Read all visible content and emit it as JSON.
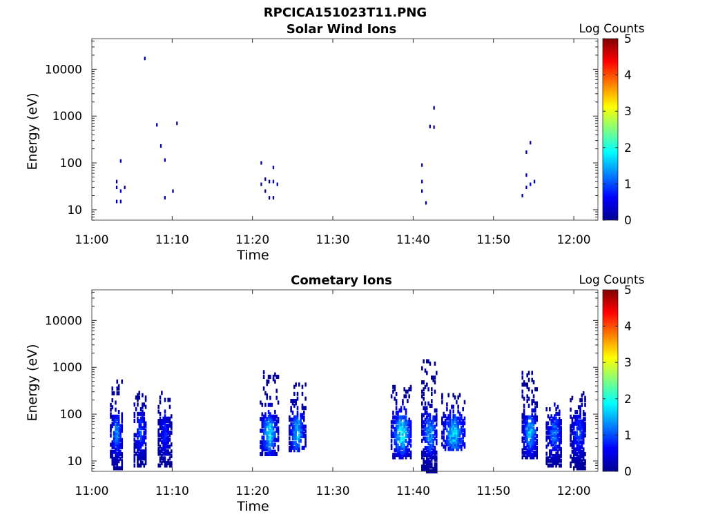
{
  "title": "RPCICA151023T11.PNG",
  "colors": {
    "colormap": [
      "#00008f",
      "#0000ff",
      "#0080ff",
      "#00ffff",
      "#80ff80",
      "#ffff00",
      "#ff8000",
      "#ff0000",
      "#800000"
    ]
  },
  "chart_data": [
    {
      "type": "heatmap",
      "title": "Solar Wind Ions",
      "xlabel": "Time",
      "ylabel": "Energy (eV)",
      "x_ticks": [
        "11:00",
        "11:10",
        "11:20",
        "11:30",
        "11:40",
        "11:50",
        "12:00"
      ],
      "xlim": [
        "11:00",
        "12:03"
      ],
      "y_scale": "log",
      "y_ticks": [
        "10",
        "100",
        "1000",
        "10000"
      ],
      "ylim": [
        6,
        45000
      ],
      "colorbar": {
        "label": "Log Counts",
        "range": [
          0,
          5
        ],
        "ticks": [
          "0",
          "1",
          "2",
          "3",
          "4",
          "5"
        ]
      },
      "cells": [
        [
          "11:03",
          40,
          0.1
        ],
        [
          "11:03",
          30,
          0.1
        ],
        [
          "11:03",
          15,
          0.1
        ],
        [
          "11:03.5",
          110,
          0.1
        ],
        [
          "11:03.5",
          25,
          0.2
        ],
        [
          "11:03.5",
          15,
          0.1
        ],
        [
          "11:04",
          30,
          0.1
        ],
        [
          "11:06.5",
          17000,
          0.1
        ],
        [
          "11:08",
          650,
          0.1
        ],
        [
          "11:08.5",
          230,
          0.1
        ],
        [
          "11:09",
          115,
          0.1
        ],
        [
          "11:09",
          18,
          0.1
        ],
        [
          "11:10",
          25,
          0.1
        ],
        [
          "11:10.5",
          700,
          0.1
        ],
        [
          "11:21",
          100,
          0.1
        ],
        [
          "11:21",
          35,
          0.1
        ],
        [
          "11:21.5",
          45,
          0.2
        ],
        [
          "11:21.5",
          25,
          0.1
        ],
        [
          "11:22",
          40,
          0.3
        ],
        [
          "11:22",
          18,
          0.1
        ],
        [
          "11:22.5",
          80,
          0.3
        ],
        [
          "11:22.5",
          40,
          0.4
        ],
        [
          "11:22.5",
          18,
          0.1
        ],
        [
          "11:23",
          35,
          0.2
        ],
        [
          "11:41",
          90,
          0.1
        ],
        [
          "11:41",
          40,
          0.2
        ],
        [
          "11:41",
          25,
          0.2
        ],
        [
          "11:41.5",
          14,
          0.1
        ],
        [
          "11:42",
          600,
          0.1
        ],
        [
          "11:42.5",
          1500,
          0.1
        ],
        [
          "11:42.5",
          580,
          0.1
        ],
        [
          "11:53.5",
          20,
          0.1
        ],
        [
          "11:54",
          170,
          0.1
        ],
        [
          "11:54",
          55,
          0.2
        ],
        [
          "11:54",
          30,
          0.3
        ],
        [
          "11:54.5",
          270,
          0.1
        ],
        [
          "11:54.5",
          35,
          0.4
        ],
        [
          "11:55",
          40,
          0.3
        ]
      ]
    },
    {
      "type": "heatmap",
      "title": "Cometary Ions",
      "xlabel": "Time",
      "ylabel": "Energy (eV)",
      "x_ticks": [
        "11:00",
        "11:10",
        "11:20",
        "11:30",
        "11:40",
        "11:50",
        "12:00"
      ],
      "xlim": [
        "11:00",
        "12:03"
      ],
      "y_scale": "log",
      "y_ticks": [
        "10",
        "100",
        "1000",
        "10000"
      ],
      "ylim": [
        6,
        45000
      ],
      "colorbar": {
        "label": "Log Counts",
        "range": [
          0,
          5
        ],
        "ticks": [
          "0",
          "1",
          "2",
          "3",
          "4",
          "5"
        ]
      },
      "bursts": [
        {
          "center": "11:03",
          "width_min": 1.5,
          "energy_low": 7,
          "energy_high": 500,
          "peak_energy": 40,
          "peak_log_counts": 1.3
        },
        {
          "center": "11:06",
          "width_min": 1.6,
          "energy_low": 8,
          "energy_high": 400,
          "peak_energy": 40,
          "peak_log_counts": 1.0
        },
        {
          "center": "11:09",
          "width_min": 1.6,
          "energy_low": 8,
          "energy_high": 300,
          "peak_energy": 40,
          "peak_log_counts": 0.8
        },
        {
          "center": "11:22",
          "width_min": 2.2,
          "energy_low": 14,
          "energy_high": 800,
          "peak_energy": 40,
          "peak_log_counts": 1.8
        },
        {
          "center": "11:25.5",
          "width_min": 2.0,
          "energy_low": 17,
          "energy_high": 450,
          "peak_energy": 40,
          "peak_log_counts": 1.6
        },
        {
          "center": "11:38.5",
          "width_min": 2.6,
          "energy_low": 12,
          "energy_high": 400,
          "peak_energy": 40,
          "peak_log_counts": 1.9
        },
        {
          "center": "11:42",
          "width_min": 2.0,
          "energy_low": 6,
          "energy_high": 1500,
          "peak_energy": 40,
          "peak_log_counts": 1.5
        },
        {
          "center": "11:45",
          "width_min": 3.0,
          "energy_low": 18,
          "energy_high": 300,
          "peak_energy": 40,
          "peak_log_counts": 1.7
        },
        {
          "center": "11:54.5",
          "width_min": 2.0,
          "energy_low": 12,
          "energy_high": 800,
          "peak_energy": 40,
          "peak_log_counts": 1.6
        },
        {
          "center": "11:57.5",
          "width_min": 2.0,
          "energy_low": 8,
          "energy_high": 200,
          "peak_energy": 40,
          "peak_log_counts": 1.2
        },
        {
          "center": "12:00.5",
          "width_min": 2.0,
          "energy_low": 7,
          "energy_high": 300,
          "peak_energy": 40,
          "peak_log_counts": 1.0
        }
      ]
    }
  ]
}
